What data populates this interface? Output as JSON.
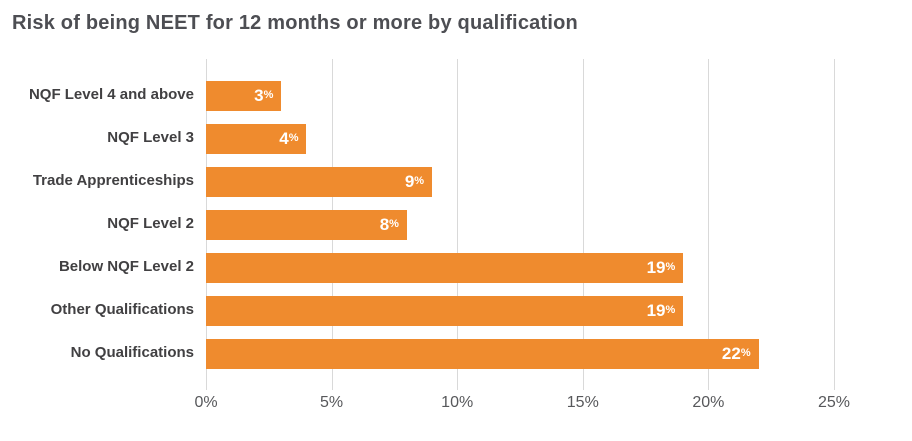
{
  "title": "Risk of being NEET for 12 months or more by qualification",
  "chart_data": {
    "type": "bar",
    "orientation": "horizontal",
    "title": "Risk of being NEET for 12 months or more by qualification",
    "categories": [
      "NQF Level 4 and above",
      "NQF Level 3",
      "Trade Apprenticeships",
      "NQF Level 2",
      "Below NQF Level 2",
      "Other Qualifications",
      "No Qualifications"
    ],
    "values": [
      3,
      4,
      9,
      8,
      19,
      19,
      22
    ],
    "value_suffix": "%",
    "xlabel": "",
    "ylabel": "",
    "xlim": [
      0,
      25
    ],
    "x_tick_values": [
      0,
      5,
      10,
      15,
      20,
      25
    ],
    "x_tick_labels": [
      "0%",
      "5%",
      "10%",
      "15%",
      "20%",
      "25%"
    ],
    "grid": "vertical",
    "legend": "none"
  },
  "colors": {
    "bar": "#EF8B2E",
    "title_text": "#4D4E53",
    "category_label": "#414042",
    "axis_label": "#57585B",
    "gridline": "#D9D9D9",
    "value_label": "#FFFFFF"
  }
}
